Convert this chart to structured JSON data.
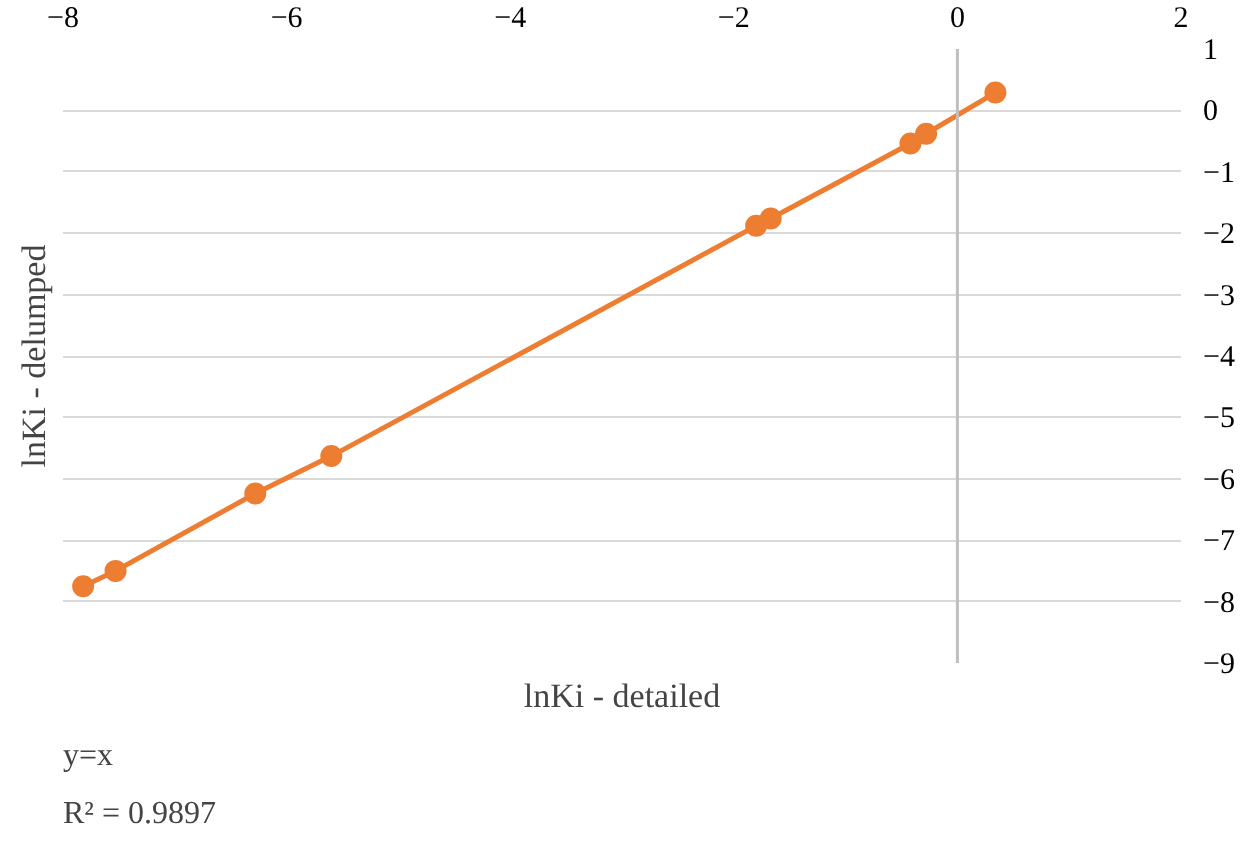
{
  "chart_data": {
    "type": "line",
    "xlabel": "lnKi - detailed",
    "ylabel": "lnKi - delumped",
    "x": [
      -7.82,
      -7.53,
      -6.28,
      -5.6,
      -1.8,
      -1.67,
      -0.42,
      -0.28,
      0.34
    ],
    "series": [
      {
        "color": "#ed7d31",
        "values": [
          -7.75,
          -7.5,
          -6.24,
          -5.63,
          -1.88,
          -1.76,
          -0.54,
          -0.38,
          0.29
        ]
      }
    ],
    "xlim": [
      -8,
      2
    ],
    "xticks": [
      -8,
      -6,
      -4,
      -2,
      0,
      2
    ],
    "ylim": [
      -9,
      1
    ],
    "yticks": [
      -9,
      -8,
      -7,
      -6,
      -5,
      -4,
      -3,
      -2,
      -1,
      0,
      1
    ],
    "grid": "y",
    "marker": "circle",
    "line_style": "solid",
    "ref_lines": [
      {
        "axis": "x",
        "value": 0,
        "color": "#bfbfbf"
      }
    ],
    "annotations": [
      "y=x",
      "R² = 0.9897"
    ]
  }
}
